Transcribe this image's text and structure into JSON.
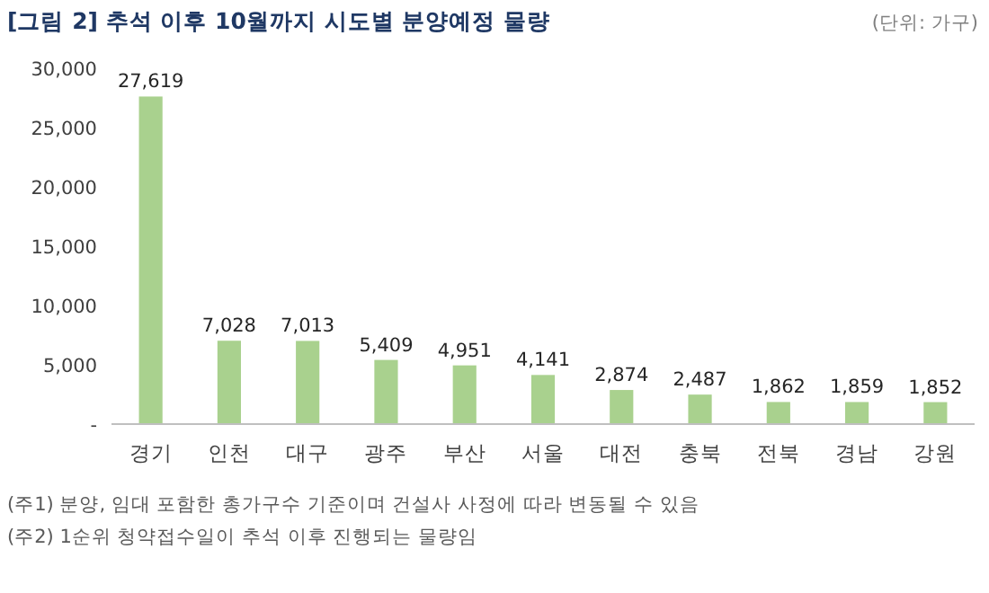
{
  "chart_data": {
    "type": "bar",
    "title": "[그림 2] 추석 이후 10월까지 시도별 분양예정 물량",
    "categories": [
      "경기",
      "인천",
      "대구",
      "광주",
      "부산",
      "서울",
      "대전",
      "충북",
      "전북",
      "경남",
      "강원"
    ],
    "values": [
      27619,
      7028,
      7013,
      5409,
      4951,
      4141,
      2874,
      2487,
      1862,
      1859,
      1852
    ],
    "color": "#a9d18e",
    "ylim": [
      0,
      30000
    ],
    "yticks": [
      {
        "value": 0,
        "label": "-"
      },
      {
        "value": 5000,
        "label": "5,000"
      },
      {
        "value": 10000,
        "label": "10,000"
      },
      {
        "value": 15000,
        "label": "15,000"
      },
      {
        "value": 20000,
        "label": "20,000"
      },
      {
        "value": 25000,
        "label": "25,000"
      },
      {
        "value": 30000,
        "label": "30,000"
      }
    ],
    "value_labels": [
      "27,619",
      "7,028",
      "7,013",
      "5,409",
      "4,951",
      "4,141",
      "2,874",
      "2,487",
      "1,862",
      "1,859",
      "1,852"
    ],
    "grid": false,
    "annotations": [
      "(단위: 가구)",
      "(주1) 분양, 임대 포함한 총가구수 기준이며 건설사 사정에 따라 변동될 수 있음",
      "(주2) 1순위 청약접수일이 추석 이후 진행되는 물량임"
    ]
  }
}
